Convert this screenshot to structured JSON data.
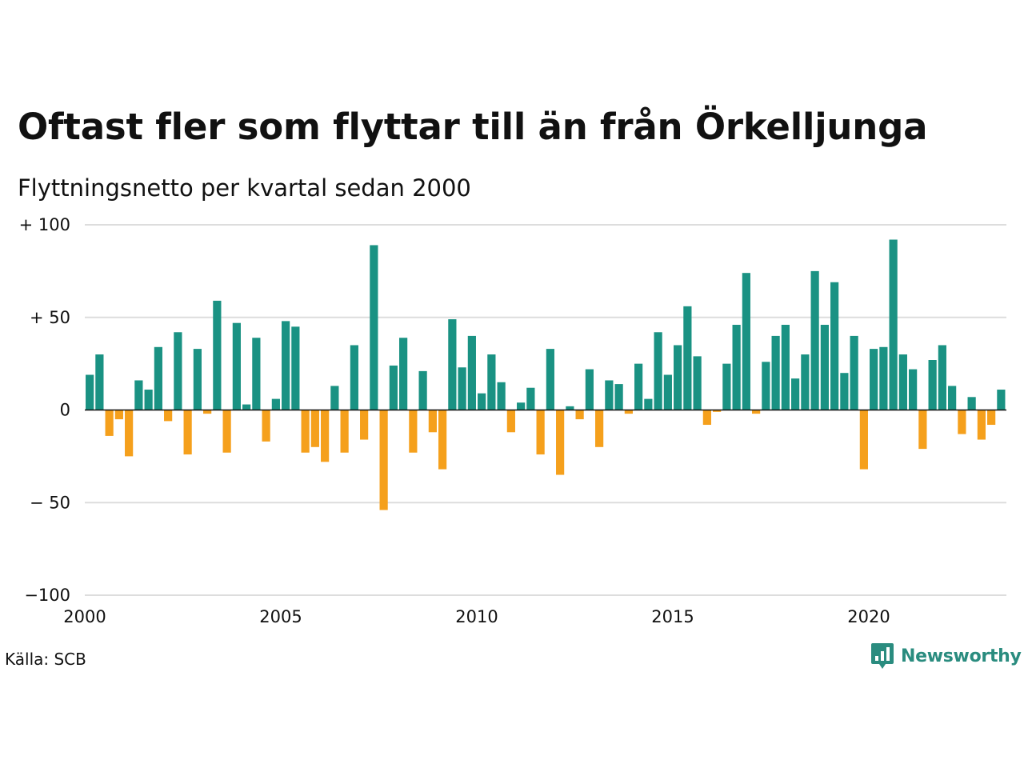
{
  "chart_data": {
    "type": "bar",
    "title": "Oftast fler som flyttar till än från Örkelljunga",
    "subtitle": "Flyttningsnetto per kvartal sedan 2000",
    "x_ticks": [
      "2000",
      "2005",
      "2010",
      "2015",
      "2020"
    ],
    "y_ticks": [
      {
        "value": 100,
        "label": "+ 100"
      },
      {
        "value": 50,
        "label": "+  50"
      },
      {
        "value": 0,
        "label": "0"
      },
      {
        "value": -50,
        "label": "− 50"
      },
      {
        "value": -100,
        "label": "−100"
      }
    ],
    "ylim": [
      -100,
      100
    ],
    "start_year": 2000,
    "quarters_per_year": 4,
    "positive_color": "#1a9283",
    "negative_color": "#f5a01c",
    "values": [
      19,
      30,
      -14,
      -5,
      -25,
      16,
      11,
      34,
      -6,
      42,
      -24,
      33,
      -2,
      59,
      -23,
      47,
      3,
      39,
      -17,
      6,
      48,
      45,
      -23,
      -20,
      -28,
      13,
      -23,
      35,
      -16,
      89,
      -54,
      24,
      39,
      -23,
      21,
      -12,
      -32,
      49,
      23,
      40,
      9,
      30,
      15,
      -12,
      4,
      12,
      -24,
      33,
      -35,
      2,
      -5,
      22,
      -20,
      16,
      14,
      -2,
      25,
      6,
      42,
      19,
      35,
      56,
      29,
      -8,
      -1,
      25,
      46,
      74,
      -2,
      26,
      40,
      46,
      17,
      30,
      75,
      46,
      69,
      20,
      40,
      -32,
      33,
      34,
      92,
      30,
      22,
      -21,
      27,
      35,
      13,
      -13,
      7,
      -16,
      -8,
      11
    ]
  },
  "source_text": "Källa: SCB",
  "brand": {
    "name": "Newsworthy",
    "icon": "newsworthy-logo-icon",
    "color": "#2a8c7f"
  }
}
